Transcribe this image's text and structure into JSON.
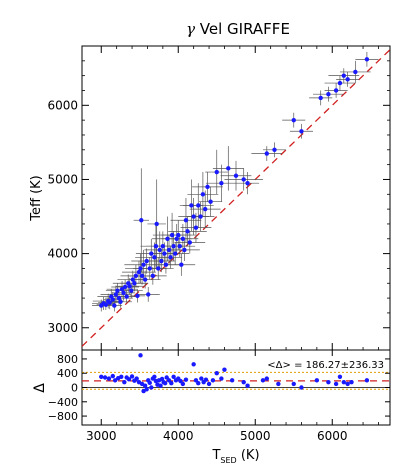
{
  "chart_data": [
    {
      "type": "scatter",
      "title": "γ Vel GIRAFFE",
      "title_greek": "γ",
      "title_rest": " Vel GIRAFFE",
      "ylabel": "Teff (K)",
      "xlim": [
        2750,
        6750
      ],
      "ylim": [
        2700,
        6800
      ],
      "xticks": [
        "3000",
        "4000",
        "5000",
        "6000"
      ],
      "yticks": [
        "3000",
        "4000",
        "5000",
        "6000"
      ],
      "grid": false,
      "colors": {
        "points": "#1a1aff",
        "errorbars": "#555555",
        "fit": "#d02020"
      },
      "reference_line": {
        "style": "dashed",
        "from": [
          2750,
          2750
        ],
        "to": [
          6750,
          6750
        ]
      },
      "points": [
        [
          3000,
          3300,
          120,
          80
        ],
        [
          3030,
          3330,
          150,
          90
        ],
        [
          3060,
          3310,
          120,
          70
        ],
        [
          3090,
          3360,
          200,
          100
        ],
        [
          3110,
          3340,
          150,
          90
        ],
        [
          3130,
          3420,
          180,
          100
        ],
        [
          3150,
          3380,
          120,
          100
        ],
        [
          3170,
          3300,
          100,
          80
        ],
        [
          3190,
          3450,
          200,
          120
        ],
        [
          3210,
          3500,
          150,
          100
        ],
        [
          3230,
          3400,
          180,
          90
        ],
        [
          3250,
          3350,
          150,
          80
        ],
        [
          3270,
          3520,
          200,
          110
        ],
        [
          3290,
          3470,
          150,
          100
        ],
        [
          3310,
          3550,
          180,
          100
        ],
        [
          3330,
          3420,
          150,
          90
        ],
        [
          3350,
          3600,
          200,
          120
        ],
        [
          3370,
          3560,
          180,
          110
        ],
        [
          3390,
          3500,
          150,
          100
        ],
        [
          3410,
          3650,
          200,
          120
        ],
        [
          3430,
          3600,
          180,
          110
        ],
        [
          3450,
          3700,
          200,
          150
        ],
        [
          3470,
          3430,
          100,
          90
        ],
        [
          3490,
          3750,
          220,
          150
        ],
        [
          3510,
          3800,
          200,
          200
        ],
        [
          3520,
          4450,
          100,
          700
        ],
        [
          3530,
          3700,
          180,
          120
        ],
        [
          3550,
          3850,
          250,
          200
        ],
        [
          3570,
          3650,
          200,
          120
        ],
        [
          3590,
          3900,
          200,
          170
        ],
        [
          3610,
          3450,
          150,
          100
        ],
        [
          3630,
          3800,
          220,
          150
        ],
        [
          3650,
          4000,
          200,
          200
        ],
        [
          3670,
          3700,
          180,
          120
        ],
        [
          3690,
          3950,
          250,
          200
        ],
        [
          3710,
          4100,
          200,
          300
        ],
        [
          3720,
          4400,
          120,
          600
        ],
        [
          3740,
          3800,
          200,
          150
        ],
        [
          3760,
          4050,
          200,
          250
        ],
        [
          3780,
          3900,
          180,
          150
        ],
        [
          3800,
          4100,
          220,
          200
        ],
        [
          3820,
          4000,
          200,
          150
        ],
        [
          3840,
          3850,
          180,
          120
        ],
        [
          3860,
          4200,
          200,
          300
        ],
        [
          3880,
          4050,
          200,
          200
        ],
        [
          3900,
          3950,
          150,
          150
        ],
        [
          3920,
          4250,
          250,
          300
        ],
        [
          3940,
          4100,
          200,
          200
        ],
        [
          3960,
          4000,
          180,
          150
        ],
        [
          3980,
          4200,
          200,
          200
        ],
        [
          4000,
          4250,
          220,
          200
        ],
        [
          4020,
          4100,
          200,
          150
        ],
        [
          4040,
          3850,
          180,
          150
        ],
        [
          4060,
          4200,
          200,
          200
        ],
        [
          4080,
          4050,
          200,
          150
        ],
        [
          4100,
          4450,
          200,
          300
        ],
        [
          4120,
          4300,
          250,
          200
        ],
        [
          4150,
          4150,
          200,
          150
        ],
        [
          4170,
          4650,
          150,
          350
        ],
        [
          4200,
          4500,
          200,
          250
        ],
        [
          4230,
          4350,
          200,
          200
        ],
        [
          4260,
          4650,
          200,
          300
        ],
        [
          4290,
          4500,
          180,
          200
        ],
        [
          4320,
          4800,
          200,
          300
        ],
        [
          4350,
          4600,
          200,
          250
        ],
        [
          4380,
          4900,
          200,
          200
        ],
        [
          4420,
          4700,
          150,
          200
        ],
        [
          4500,
          5100,
          150,
          300
        ],
        [
          4560,
          4950,
          200,
          250
        ],
        [
          4650,
          5150,
          200,
          300
        ],
        [
          4750,
          5050,
          200,
          200
        ],
        [
          4850,
          5000,
          250,
          150
        ],
        [
          4900,
          4950,
          150,
          150
        ],
        [
          5150,
          5350,
          200,
          100
        ],
        [
          5250,
          5400,
          150,
          100
        ],
        [
          5500,
          5800,
          150,
          100
        ],
        [
          5600,
          5650,
          150,
          100
        ],
        [
          5850,
          6100,
          150,
          100
        ],
        [
          5950,
          6150,
          200,
          100
        ],
        [
          6050,
          6200,
          150,
          100
        ],
        [
          6100,
          6300,
          200,
          100
        ],
        [
          6150,
          6400,
          200,
          100
        ],
        [
          6200,
          6350,
          150,
          100
        ],
        [
          6300,
          6450,
          200,
          150
        ],
        [
          6450,
          6620,
          150,
          100
        ]
      ]
    },
    {
      "type": "scatter",
      "ylabel": "Δ",
      "xlabel_main": "T",
      "xlabel_sub": "SED",
      "xlabel_unit": " (K)",
      "xlim": [
        2750,
        6750
      ],
      "ylim": [
        -1050,
        1050
      ],
      "yticks": [
        "800",
        "400",
        "0",
        "−400",
        "−800"
      ],
      "xticks": [
        "3000",
        "4000",
        "5000",
        "6000"
      ],
      "mean_text": "<Δ> = 186.27±236.33",
      "mean": 186.27,
      "sigma": 236.33,
      "zero_line": 0,
      "colors": {
        "points": "#1a1aff",
        "mean_line": "#d02020",
        "sigma_lines": "#e0a000"
      },
      "points": [
        [
          3000,
          300
        ],
        [
          3050,
          280
        ],
        [
          3100,
          250
        ],
        [
          3150,
          320
        ],
        [
          3180,
          200
        ],
        [
          3220,
          260
        ],
        [
          3260,
          300
        ],
        [
          3300,
          150
        ],
        [
          3330,
          280
        ],
        [
          3360,
          230
        ],
        [
          3400,
          310
        ],
        [
          3430,
          190
        ],
        [
          3460,
          250
        ],
        [
          3490,
          150
        ],
        [
          3510,
          900
        ],
        [
          3530,
          100
        ],
        [
          3550,
          -100
        ],
        [
          3570,
          50
        ],
        [
          3590,
          -50
        ],
        [
          3610,
          200
        ],
        [
          3630,
          130
        ],
        [
          3650,
          0
        ],
        [
          3670,
          250
        ],
        [
          3690,
          300
        ],
        [
          3710,
          180
        ],
        [
          3730,
          80
        ],
        [
          3750,
          200
        ],
        [
          3770,
          50
        ],
        [
          3790,
          240
        ],
        [
          3810,
          150
        ],
        [
          3830,
          120
        ],
        [
          3850,
          280
        ],
        [
          3880,
          200
        ],
        [
          3910,
          120
        ],
        [
          3940,
          300
        ],
        [
          3970,
          200
        ],
        [
          4000,
          250
        ],
        [
          4030,
          180
        ],
        [
          4060,
          100
        ],
        [
          4100,
          220
        ],
        [
          4200,
          650
        ],
        [
          4230,
          200
        ],
        [
          4260,
          120
        ],
        [
          4300,
          250
        ],
        [
          4330,
          150
        ],
        [
          4360,
          220
        ],
        [
          4400,
          100
        ],
        [
          4450,
          200
        ],
        [
          4500,
          400
        ],
        [
          4560,
          250
        ],
        [
          4600,
          500
        ],
        [
          4700,
          200
        ],
        [
          4850,
          150
        ],
        [
          4900,
          50
        ],
        [
          5100,
          200
        ],
        [
          5150,
          250
        ],
        [
          5300,
          100
        ],
        [
          5500,
          100
        ],
        [
          5600,
          0
        ],
        [
          5800,
          200
        ],
        [
          5950,
          150
        ],
        [
          6050,
          100
        ],
        [
          6100,
          300
        ],
        [
          6150,
          150
        ],
        [
          6200,
          100
        ],
        [
          6250,
          150
        ],
        [
          6450,
          200
        ]
      ]
    }
  ]
}
